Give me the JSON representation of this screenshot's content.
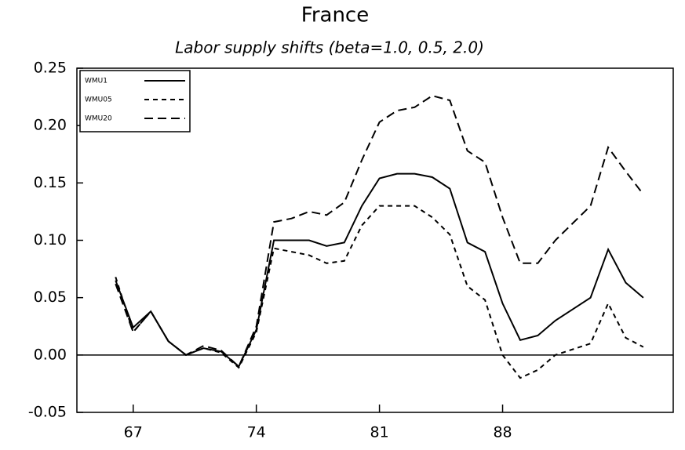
{
  "chart_data": {
    "type": "line",
    "title": "France",
    "subtitle": "Labor supply shifts (beta=1.0, 0.5, 2.0)",
    "x": [
      66,
      67,
      68,
      69,
      70,
      71,
      72,
      73,
      74,
      75,
      76,
      77,
      78,
      79,
      80,
      81,
      82,
      83,
      84,
      85,
      86,
      87,
      88,
      89,
      90,
      91,
      92,
      93,
      94,
      95,
      96
    ],
    "series": [
      {
        "name": "WMU1",
        "color": "#000000",
        "linestyle": "solid",
        "values": [
          0.065,
          0.024,
          0.038,
          0.012,
          0.0,
          0.006,
          0.003,
          -0.01,
          0.022,
          0.1,
          0.1,
          0.1,
          0.095,
          0.098,
          0.13,
          0.154,
          0.158,
          0.158,
          0.155,
          0.145,
          0.098,
          0.09,
          0.045,
          0.013,
          0.017,
          0.03,
          0.04,
          0.05,
          0.092,
          0.063,
          0.05
        ]
      },
      {
        "name": "WMU05",
        "color": "#000000",
        "linestyle": "short-dash",
        "values": [
          0.068,
          0.02,
          0.038,
          0.012,
          0.0,
          0.006,
          0.002,
          -0.011,
          0.02,
          0.093,
          0.09,
          0.087,
          0.08,
          0.082,
          0.113,
          0.13,
          0.13,
          0.13,
          0.12,
          0.105,
          0.06,
          0.048,
          0.0,
          -0.02,
          -0.013,
          0.0,
          0.005,
          0.01,
          0.045,
          0.015,
          0.007
        ]
      },
      {
        "name": "WMU20",
        "color": "#000000",
        "linestyle": "long-dash",
        "values": [
          0.062,
          0.02,
          0.038,
          0.012,
          0.0,
          0.008,
          0.004,
          -0.01,
          0.025,
          0.116,
          0.119,
          0.125,
          0.122,
          0.133,
          0.17,
          0.203,
          0.213,
          0.216,
          0.226,
          0.222,
          0.178,
          0.168,
          0.12,
          0.08,
          0.08,
          0.1,
          0.115,
          0.13,
          0.181,
          0.16,
          0.14
        ]
      }
    ],
    "xlim": [
      63.8,
      97.7
    ],
    "xticks": [
      67,
      74,
      81,
      88
    ],
    "ylim": [
      -0.05,
      0.25
    ],
    "yticks": [
      -0.05,
      {
        "value": 0,
        "label": "0.00"
      },
      0.05,
      {
        "value": 0.1,
        "label": "0.10"
      },
      0.15,
      {
        "value": 0.2,
        "label": "0.20"
      },
      0.25
    ],
    "zero_line": true,
    "legend": "top-left"
  }
}
